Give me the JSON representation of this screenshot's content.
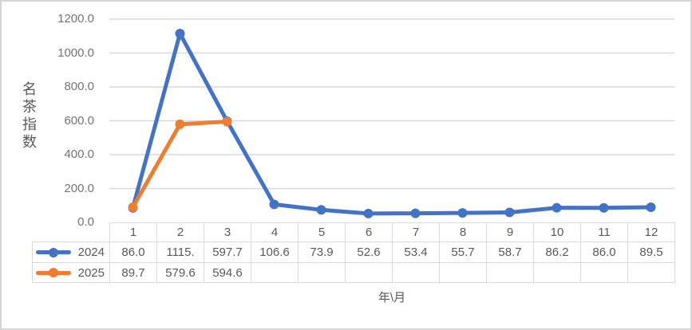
{
  "chart_data": {
    "type": "line",
    "title": "",
    "ylabel": "名茶指数",
    "xlabel": "年\\月",
    "categories": [
      "1",
      "2",
      "3",
      "4",
      "5",
      "6",
      "7",
      "8",
      "9",
      "10",
      "11",
      "12"
    ],
    "series": [
      {
        "name": "2024",
        "color": "#4472C4",
        "values": [
          "86.0",
          "1115.",
          "597.7",
          "106.6",
          "73.9",
          "52.6",
          "53.4",
          "55.7",
          "58.7",
          "86.2",
          "86.0",
          "89.5"
        ]
      },
      {
        "name": "2025",
        "color": "#ED7D31",
        "values": [
          "89.7",
          "579.6",
          "594.6",
          "",
          "",
          "",
          "",
          "",
          "",
          "",
          "",
          ""
        ]
      }
    ],
    "yticks": [
      "1200.0",
      "1000.0",
      "800.0",
      "600.0",
      "400.0",
      "200.0",
      "0.0"
    ],
    "ylim": [
      0,
      1200
    ],
    "grid": true,
    "legend_position": "table-left",
    "colors": {
      "gridline": "#D9D9D9",
      "table_border": "#D9D9D9",
      "axis_text": "#737373",
      "label_text": "#595959",
      "background": "#FFFFFF",
      "frame": "#D5D5D5"
    }
  }
}
